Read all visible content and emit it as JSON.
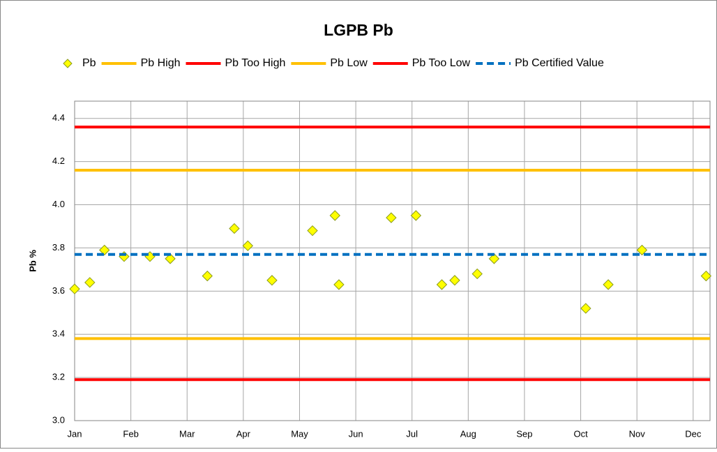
{
  "chart_data": {
    "type": "scatter",
    "title": "LGPB Pb",
    "y_label": "Pb %",
    "xlim": [
      0,
      11.3
    ],
    "xticks": [
      {
        "value": 0,
        "label": "Jan"
      },
      {
        "value": 1,
        "label": "Feb"
      },
      {
        "value": 2,
        "label": "Mar"
      },
      {
        "value": 3,
        "label": "Apr"
      },
      {
        "value": 4,
        "label": "May"
      },
      {
        "value": 5,
        "label": "Jun"
      },
      {
        "value": 6,
        "label": "Jul"
      },
      {
        "value": 7,
        "label": "Aug"
      },
      {
        "value": 8,
        "label": "Sep"
      },
      {
        "value": 9,
        "label": "Oct"
      },
      {
        "value": 10,
        "label": "Nov"
      },
      {
        "value": 11,
        "label": "Dec"
      }
    ],
    "ylim": [
      3.0,
      4.48
    ],
    "yticks": [
      {
        "value": 3,
        "label": "3.0"
      },
      3.2,
      3.4,
      3.6,
      3.8,
      {
        "value": 4,
        "label": "4.0"
      },
      4.2,
      4.4
    ],
    "grid": true,
    "legend": "top",
    "series": [
      {
        "name": "Pb",
        "kind": "points",
        "color": "#ffff00",
        "edge": "#8a9a1a",
        "x": [
          0.0,
          0.27,
          0.53,
          0.88,
          1.34,
          1.7,
          2.36,
          2.84,
          3.08,
          3.51,
          4.23,
          4.63,
          4.7,
          5.63,
          6.07,
          6.53,
          6.76,
          7.16,
          7.46,
          9.09,
          9.49,
          10.09,
          11.23
        ],
        "values": [
          3.61,
          3.64,
          3.79,
          3.76,
          3.76,
          3.75,
          3.67,
          3.89,
          3.81,
          3.65,
          3.88,
          3.95,
          3.63,
          3.94,
          3.95,
          3.63,
          3.65,
          3.68,
          3.75,
          3.52,
          3.63,
          3.79,
          3.67
        ]
      },
      {
        "name": "Pb High",
        "kind": "hline",
        "color": "#ffc000",
        "value": 4.16
      },
      {
        "name": "Pb Too High",
        "kind": "hline",
        "color": "#ff0000",
        "value": 4.36
      },
      {
        "name": "Pb Low",
        "kind": "hline",
        "color": "#ffc000",
        "value": 3.38
      },
      {
        "name": "Pb Too Low",
        "kind": "hline",
        "color": "#ff0000",
        "value": 3.19
      },
      {
        "name": "Pb Certified Value",
        "kind": "hline",
        "color": "#0070c0",
        "dashed": true,
        "value": 3.77
      }
    ]
  }
}
